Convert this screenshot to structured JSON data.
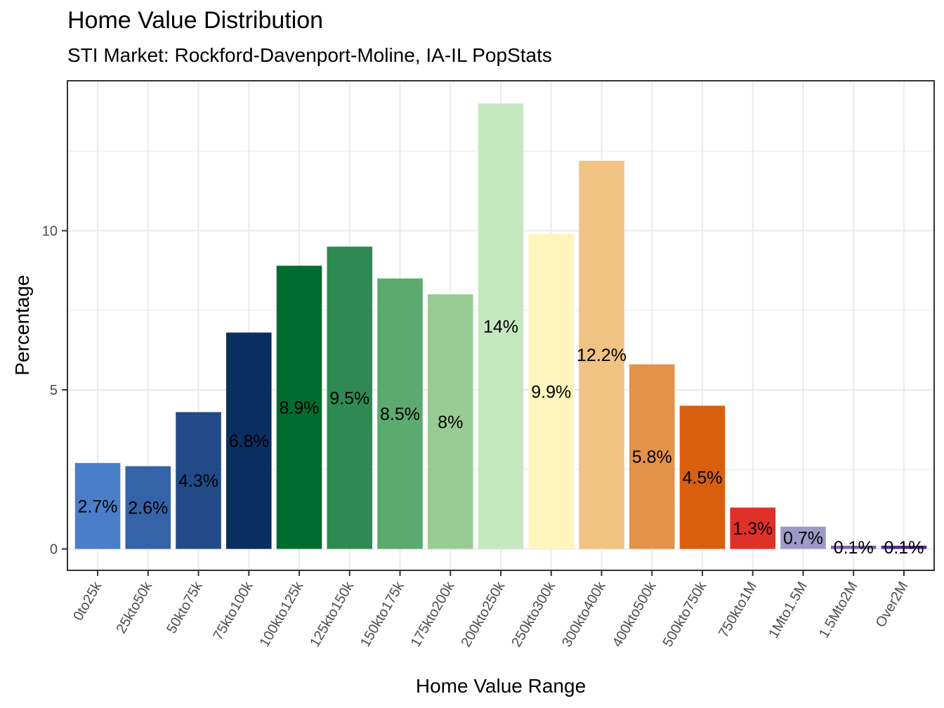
{
  "chart_data": {
    "type": "bar",
    "title": "Home Value Distribution",
    "subtitle": "STI Market: Rockford-Davenport-Moline, IA-IL PopStats",
    "xlabel": "Home Value Range",
    "ylabel": "Percentage",
    "ylim": [
      -0.7,
      14.7
    ],
    "yticks": [
      0,
      5,
      10
    ],
    "grid": true,
    "legend": "none",
    "categories": [
      "0to25k",
      "25kto50k",
      "50kto75k",
      "75kto100k",
      "100kto125k",
      "125kto150k",
      "150kto175k",
      "175kto200k",
      "200kto250k",
      "250kto300k",
      "300kto400k",
      "400kto500k",
      "500kto750k",
      "750kto1M",
      "1Mto1.5M",
      "1.5Mto2M",
      "Over2M"
    ],
    "values": [
      2.7,
      2.6,
      4.3,
      6.8,
      8.9,
      9.5,
      8.5,
      8.0,
      14.0,
      9.9,
      12.2,
      5.8,
      4.5,
      1.3,
      0.7,
      0.1,
      0.1
    ],
    "data_labels": [
      "2.7%",
      "2.6%",
      "4.3%",
      "6.8%",
      "8.9%",
      "9.5%",
      "8.5%",
      "8%",
      "14%",
      "9.9%",
      "12.2%",
      "5.8%",
      "4.5%",
      "1.3%",
      "0.7%",
      "0.1%",
      "0.1%"
    ],
    "colors": [
      "#4a7ec9",
      "#3563a8",
      "#214a86",
      "#0b2e61",
      "#006b2f",
      "#2e8a52",
      "#5caa6f",
      "#98cc94",
      "#c6e8c1",
      "#fef5bd",
      "#f0c382",
      "#e39249",
      "#d95f0e",
      "#e0302a",
      "#9e9ac8",
      "#7c63ac",
      "#54278f"
    ]
  }
}
